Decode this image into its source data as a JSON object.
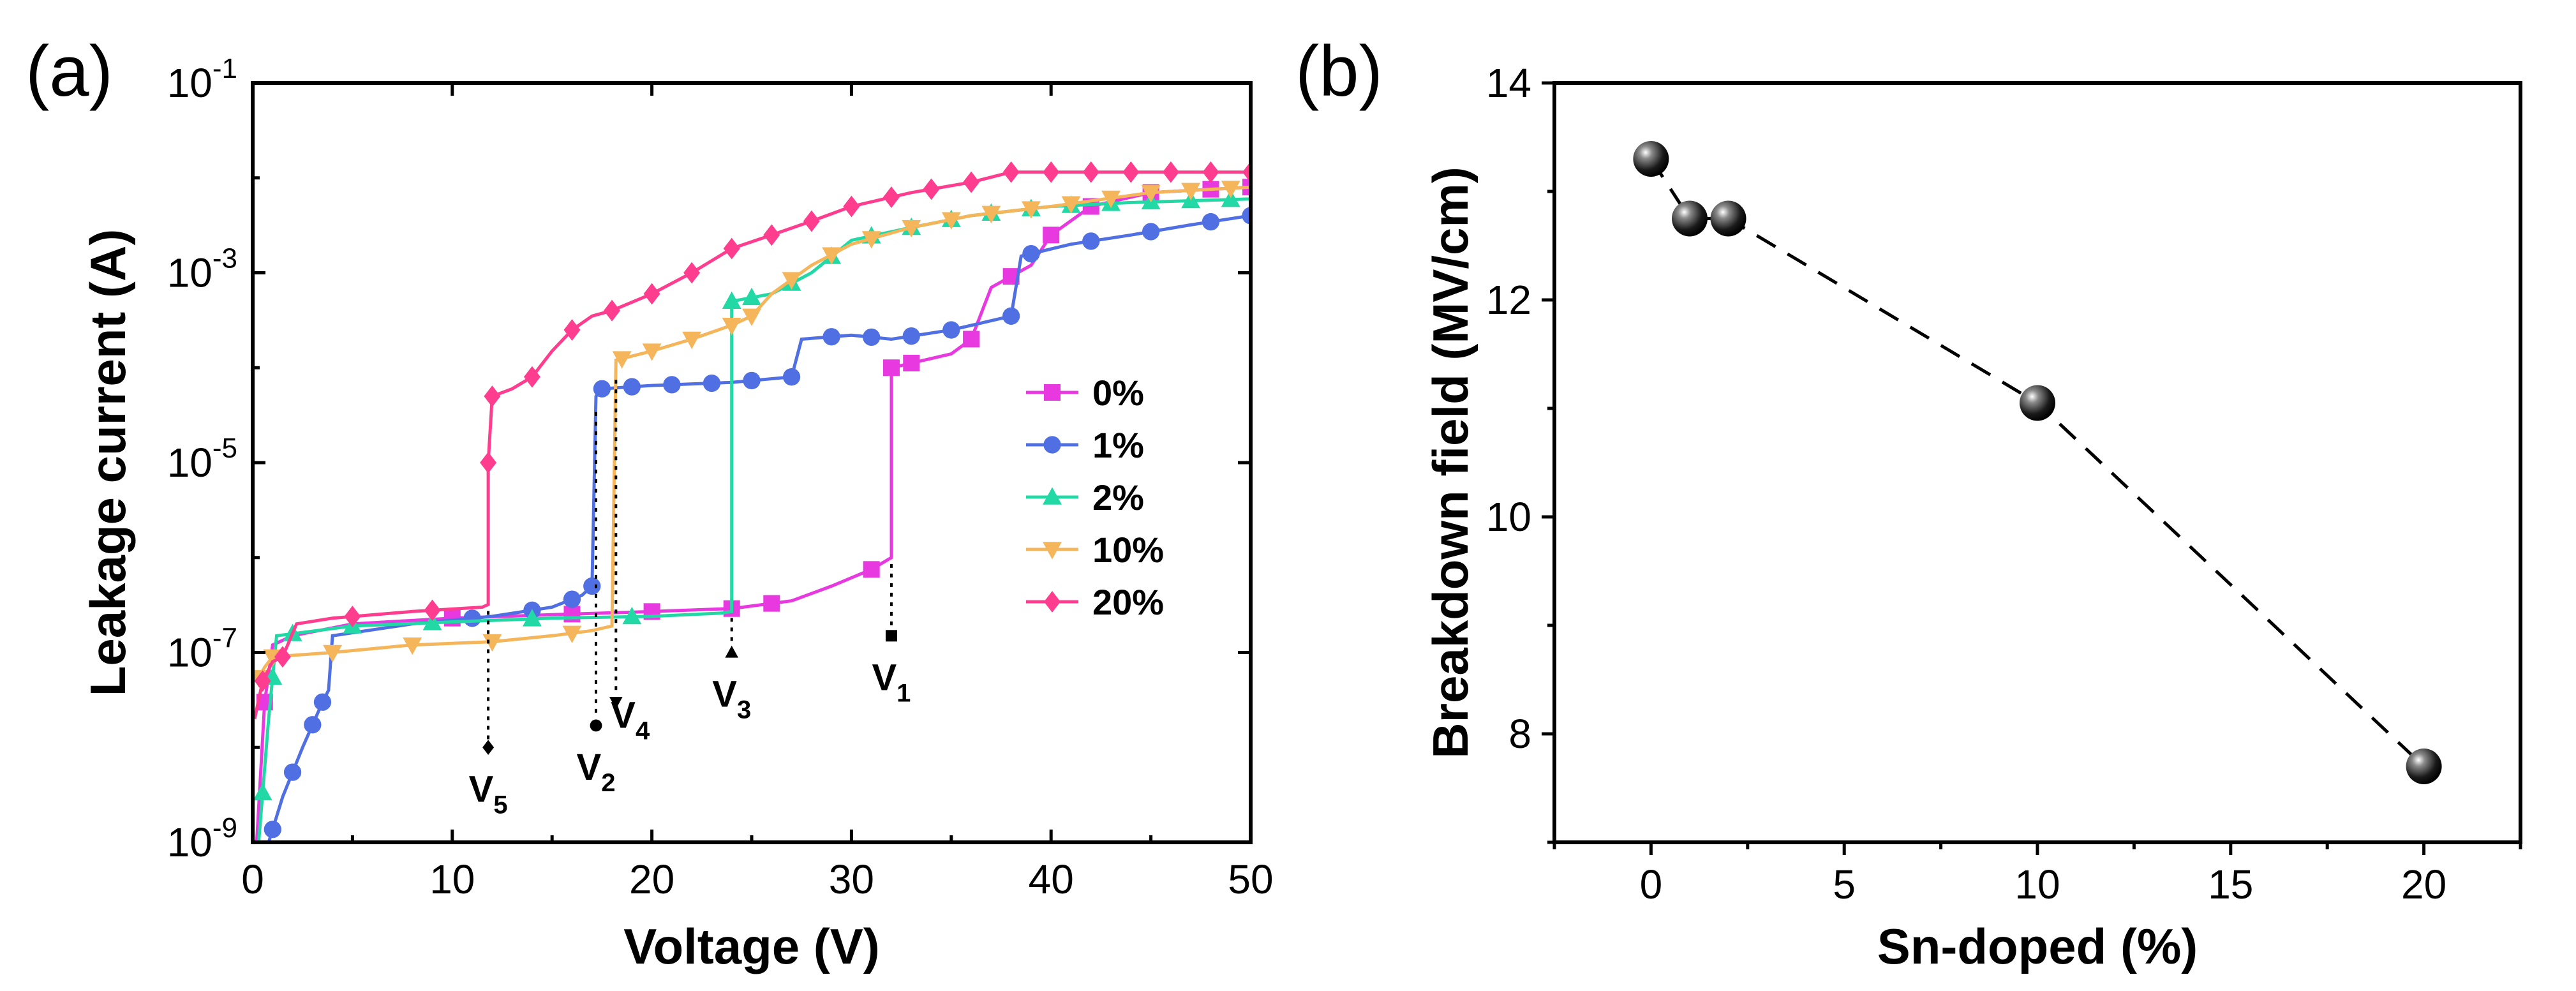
{
  "figure": {
    "panel_a_tag": "(a)",
    "panel_b_tag": "(b)"
  },
  "chart_data": [
    {
      "type": "line",
      "panel": "(a)",
      "xlabel": "Voltage (V)",
      "ylabel": "Leakage current (A)",
      "yscale": "log",
      "xlim": [
        0,
        50
      ],
      "ylim": [
        1e-09,
        0.1
      ],
      "x_ticks": [
        0,
        10,
        20,
        30,
        40,
        50
      ],
      "x_tick_labels": [
        "0",
        "10",
        "20",
        "30",
        "40",
        "50"
      ],
      "y_ticks": [
        1e-09,
        1e-07,
        1e-05,
        0.001,
        0.1
      ],
      "y_tick_labels": [
        {
          "base": "10",
          "exp": "-9"
        },
        {
          "base": "10",
          "exp": "-7"
        },
        {
          "base": "10",
          "exp": "-5"
        },
        {
          "base": "10",
          "exp": "-3"
        },
        {
          "base": "10",
          "exp": "-1"
        }
      ],
      "legend_position": "center-right",
      "series": [
        {
          "name": "0%",
          "color": "#e838e0",
          "marker": "square",
          "points": [
            [
              0.2,
              1e-09
            ],
            [
              0.6,
              3e-08
            ],
            [
              1.0,
              1.2e-07
            ],
            [
              2,
              1.5e-07
            ],
            [
              5,
              2e-07
            ],
            [
              10,
              2.3e-07
            ],
            [
              15,
              2.5e-07
            ],
            [
              20,
              2.7e-07
            ],
            [
              24,
              2.9e-07
            ],
            [
              27,
              3.5e-07
            ],
            [
              29,
              5e-07
            ],
            [
              31,
              7.5e-07
            ],
            [
              32,
              1e-06
            ],
            [
              32,
              0.0001
            ],
            [
              35,
              0.00014
            ],
            [
              36,
              0.0002
            ],
            [
              37,
              0.0007
            ],
            [
              39,
              0.0012
            ],
            [
              40,
              0.0025
            ],
            [
              42,
              0.005
            ],
            [
              45,
              0.007
            ],
            [
              50,
              0.008
            ]
          ],
          "marker_x": [
            0.6,
            10,
            16,
            20,
            24,
            26,
            31,
            32,
            33,
            36,
            38,
            40,
            42,
            45,
            48,
            50
          ]
        },
        {
          "name": "1%",
          "color": "#4f6fe3",
          "marker": "circle",
          "points": [
            [
              0.8,
              1e-09
            ],
            [
              1.5,
              3e-09
            ],
            [
              2.5,
              1e-08
            ],
            [
              3.5,
              3e-08
            ],
            [
              3.8,
              4e-08
            ],
            [
              4,
              1.5e-07
            ],
            [
              8,
              2e-07
            ],
            [
              12,
              2.4e-07
            ],
            [
              15,
              3e-07
            ],
            [
              16.5,
              4e-07
            ],
            [
              17,
              5e-07
            ],
            [
              17.2,
              5e-05
            ],
            [
              17.5,
              6e-05
            ],
            [
              20,
              6.5e-05
            ],
            [
              24,
              7e-05
            ],
            [
              27,
              8e-05
            ],
            [
              27.5,
              0.0002
            ],
            [
              30,
              0.00022
            ],
            [
              32,
              0.0002
            ],
            [
              35,
              0.00025
            ],
            [
              38,
              0.00035
            ],
            [
              38.5,
              0.0015
            ],
            [
              41,
              0.002
            ],
            [
              44,
              0.0025
            ],
            [
              47,
              0.0032
            ],
            [
              50,
              0.004
            ]
          ],
          "marker_x": [
            1,
            2,
            3,
            3.5,
            11,
            14,
            16,
            17,
            17.5,
            19,
            21,
            23,
            25,
            27,
            29,
            31,
            33,
            35,
            38,
            39,
            42,
            45,
            48,
            50
          ]
        },
        {
          "name": "2%",
          "color": "#22d9a6",
          "marker": "triangle-up",
          "points": [
            [
              0.3,
              1e-09
            ],
            [
              0.8,
              2e-08
            ],
            [
              1.2,
              1.5e-07
            ],
            [
              5,
              1.9e-07
            ],
            [
              10,
              2.1e-07
            ],
            [
              15,
              2.3e-07
            ],
            [
              20,
              2.4e-07
            ],
            [
              23.5,
              2.6e-07
            ],
            [
              24,
              2.7e-07
            ],
            [
              24,
              0.0005
            ],
            [
              26,
              0.0006
            ],
            [
              28,
              0.001
            ],
            [
              30,
              0.0022
            ],
            [
              33,
              0.003
            ],
            [
              36,
              0.004
            ],
            [
              40,
              0.005
            ],
            [
              44,
              0.0055
            ],
            [
              50,
              0.006
            ]
          ],
          "marker_x": [
            0.5,
            1,
            2,
            5,
            9,
            14,
            19,
            24,
            25,
            27,
            29,
            31,
            33,
            35,
            37,
            39,
            41,
            43,
            45,
            47,
            49
          ]
        },
        {
          "name": "10%",
          "color": "#f5b55a",
          "marker": "triangle-down",
          "points": [
            [
              0.2,
              5e-08
            ],
            [
              0.6,
              7e-08
            ],
            [
              1,
              9e-08
            ],
            [
              4,
              1e-07
            ],
            [
              8,
              1.2e-07
            ],
            [
              12,
              1.3e-07
            ],
            [
              15,
              1.5e-07
            ],
            [
              17,
              1.7e-07
            ],
            [
              18,
              1.9e-07
            ],
            [
              18.2,
              0.00012
            ],
            [
              20,
              0.00015
            ],
            [
              22,
              0.0002
            ],
            [
              24,
              0.00028
            ],
            [
              25,
              0.00035
            ],
            [
              26,
              0.0006
            ],
            [
              28,
              0.0012
            ],
            [
              30,
              0.002
            ],
            [
              33,
              0.003
            ],
            [
              36,
              0.004
            ],
            [
              40,
              0.005
            ],
            [
              45,
              0.007
            ],
            [
              50,
              0.008
            ]
          ],
          "marker_x": [
            0.3,
            1,
            4,
            8,
            12,
            16,
            18.5,
            20,
            22,
            24,
            25,
            27,
            29,
            31,
            33,
            35,
            37,
            39,
            41,
            43,
            45,
            47,
            49
          ]
        },
        {
          "name": "20%",
          "color": "#ff3d8f",
          "marker": "diamond",
          "points": [
            [
              0.1,
              2e-08
            ],
            [
              0.5,
              5e-08
            ],
            [
              1,
              8e-08
            ],
            [
              1.5,
              9e-08
            ],
            [
              2.2,
              2e-07
            ],
            [
              4,
              2.3e-07
            ],
            [
              8,
              2.7e-07
            ],
            [
              11.5,
              3e-07
            ],
            [
              11.8,
              3.2e-07
            ],
            [
              11.8,
              1e-05
            ],
            [
              12,
              5e-05
            ],
            [
              13,
              6e-05
            ],
            [
              14,
              8e-05
            ],
            [
              15,
              0.00015
            ],
            [
              16,
              0.00025
            ],
            [
              17,
              0.00035
            ],
            [
              18,
              0.0004
            ],
            [
              20,
              0.0006
            ],
            [
              22,
              0.001
            ],
            [
              24,
              0.0018
            ],
            [
              26,
              0.0025
            ],
            [
              28,
              0.0035
            ],
            [
              30,
              0.005
            ],
            [
              33,
              0.007
            ],
            [
              36,
              0.009
            ],
            [
              38,
              0.0115
            ],
            [
              40,
              0.0115
            ],
            [
              45,
              0.0115
            ],
            [
              50,
              0.0115
            ]
          ],
          "marker_x": [
            0.5,
            1.5,
            5,
            9,
            11.8,
            12,
            14,
            16,
            18,
            20,
            22,
            24,
            26,
            28,
            30,
            32,
            34,
            36,
            38,
            40,
            42,
            44,
            46,
            48,
            50
          ]
        }
      ],
      "annotations": [
        {
          "base": "V",
          "sub": "1",
          "x": 32,
          "y": 1.5e-07,
          "marker": "square",
          "label_side": "below"
        },
        {
          "base": "V",
          "sub": "2",
          "x": 17.2,
          "y": 1.7e-08,
          "marker": "circle",
          "label_side": "below"
        },
        {
          "base": "V",
          "sub": "3",
          "x": 24,
          "y": 1e-07,
          "marker": "triangle-up",
          "label_side": "below"
        },
        {
          "base": "V",
          "sub": "4",
          "x": 18.2,
          "y": 3e-08,
          "marker": "triangle-down",
          "label_side": "right"
        },
        {
          "base": "V",
          "sub": "5",
          "x": 11.8,
          "y": 1e-08,
          "marker": "diamond",
          "label_side": "below"
        }
      ]
    },
    {
      "type": "scatter",
      "panel": "(b)",
      "xlabel": "Sn-doped (%)",
      "ylabel": "Breakdown field (MV/cm)",
      "xlim": [
        -2.5,
        22.5
      ],
      "ylim": [
        7,
        14
      ],
      "x_ticks": [
        0,
        5,
        10,
        15,
        20
      ],
      "x_tick_labels": [
        "0",
        "5",
        "10",
        "15",
        "20"
      ],
      "y_ticks": [
        8,
        10,
        12,
        14
      ],
      "y_tick_labels": [
        "8",
        "10",
        "12",
        "14"
      ],
      "connector": "dashed",
      "x": [
        0,
        1,
        2,
        10,
        20
      ],
      "y": [
        13.3,
        12.75,
        12.75,
        11.05,
        7.7
      ]
    }
  ]
}
